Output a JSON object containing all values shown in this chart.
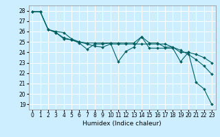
{
  "xlabel": "Humidex (Indice chaleur)",
  "bg_color": "#cceeff",
  "grid_color": "#ffffff",
  "line_color": "#006060",
  "xlim": [
    -0.5,
    23.5
  ],
  "ylim": [
    18.5,
    28.5
  ],
  "xticks": [
    0,
    1,
    2,
    3,
    4,
    5,
    6,
    7,
    8,
    9,
    10,
    11,
    12,
    13,
    14,
    15,
    16,
    17,
    18,
    19,
    20,
    21,
    22,
    23
  ],
  "yticks": [
    19,
    20,
    21,
    22,
    23,
    24,
    25,
    26,
    27,
    28
  ],
  "series1_x": [
    0,
    1,
    2,
    3,
    4,
    5,
    6,
    7,
    8,
    9,
    10,
    11,
    12,
    13,
    14,
    15,
    16,
    17,
    18,
    19,
    20,
    21,
    22,
    23
  ],
  "series1_y": [
    27.9,
    27.9,
    26.2,
    25.9,
    25.3,
    25.2,
    24.9,
    24.3,
    24.8,
    24.8,
    24.9,
    23.1,
    24.1,
    24.5,
    25.5,
    24.4,
    24.4,
    24.4,
    24.4,
    23.1,
    24.0,
    21.1,
    20.5,
    19.0
  ],
  "series2_x": [
    0,
    1,
    2,
    3,
    4,
    5,
    6,
    7,
    8,
    9,
    10,
    11,
    12,
    13,
    14,
    15,
    16,
    17,
    18,
    19,
    20,
    21,
    22,
    23
  ],
  "series2_y": [
    27.9,
    27.9,
    26.2,
    25.9,
    25.4,
    25.2,
    25.0,
    24.8,
    24.6,
    24.5,
    24.8,
    24.8,
    24.8,
    24.8,
    24.8,
    24.8,
    24.8,
    24.8,
    24.5,
    24.2,
    23.8,
    23.3,
    22.7,
    21.9
  ],
  "series3_x": [
    0,
    1,
    2,
    3,
    4,
    5,
    6,
    7,
    8,
    9,
    10,
    11,
    12,
    13,
    14,
    15,
    16,
    17,
    18,
    19,
    20,
    21,
    22,
    23
  ],
  "series3_y": [
    27.9,
    27.9,
    26.2,
    26.0,
    25.9,
    25.3,
    25.0,
    24.9,
    24.9,
    24.9,
    24.9,
    24.9,
    24.9,
    24.9,
    25.5,
    24.9,
    24.9,
    24.5,
    24.5,
    24.0,
    24.0,
    23.8,
    23.5,
    23.0
  ],
  "tick_fontsize": 5.5,
  "xlabel_fontsize": 6.5
}
